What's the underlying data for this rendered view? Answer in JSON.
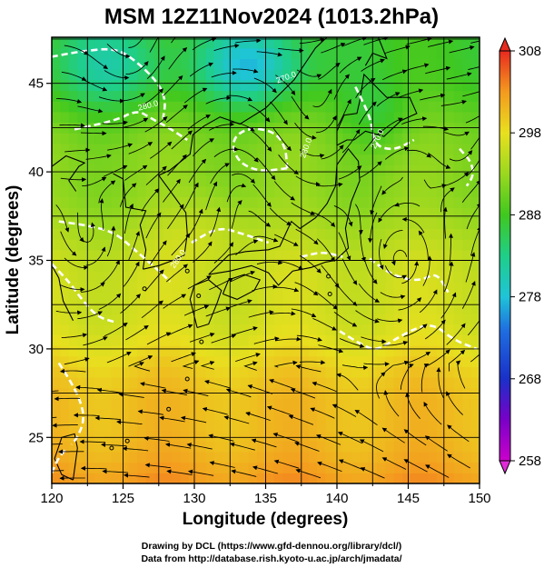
{
  "chart_data": {
    "type": "heatmap",
    "title": "MSM 12Z11Nov2024 (1013.2hPa)",
    "xlabel": "Longitude (degrees)",
    "ylabel": "Latitude  (degrees)",
    "xlim": [
      120,
      150
    ],
    "ylim": [
      22.4,
      47.6
    ],
    "x_ticks": [
      "120",
      "125",
      "130",
      "135",
      "140",
      "145",
      "150"
    ],
    "y_ticks": [
      "25",
      "30",
      "35",
      "40",
      "45"
    ],
    "grid": true,
    "colorbar": {
      "min": 258,
      "max": 308,
      "ticks": [
        "258",
        "268",
        "278",
        "288",
        "298",
        "308"
      ]
    },
    "contour_labels": [
      "280.0",
      "280.0",
      "270.0",
      "280.0",
      "270.0"
    ],
    "field": "temperature (K) with streamlines",
    "credits": [
      "Drawing by DCL (https://www.gfd-dennou.org/library/dcl/)",
      "Data from http://database.rish.kyoto-u.ac.jp/arch/jmadata/"
    ]
  }
}
